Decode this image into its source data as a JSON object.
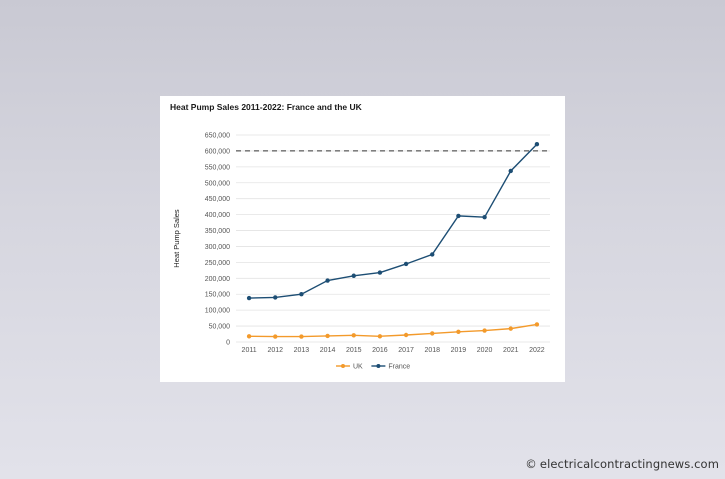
{
  "page": {
    "watermark": "electricalcontractingnews.com",
    "watermark_symbol": "©"
  },
  "chart_data": {
    "type": "line",
    "title": "Heat Pump Sales 2011-2022: France and the UK",
    "xlabel": "",
    "ylabel": "Heat Pump Sales",
    "ylim": [
      0,
      650000
    ],
    "yticks": [
      0,
      50000,
      100000,
      150000,
      200000,
      250000,
      300000,
      350000,
      400000,
      450000,
      500000,
      550000,
      600000,
      650000
    ],
    "ytick_labels": [
      "0",
      "50,000",
      "100,000",
      "150,000",
      "200,000",
      "250,000",
      "300,000",
      "350,000",
      "400,000",
      "450,000",
      "500,000",
      "550,000",
      "600,000",
      "650,000"
    ],
    "categories": [
      "2011",
      "2012",
      "2013",
      "2014",
      "2015",
      "2016",
      "2017",
      "2018",
      "2019",
      "2020",
      "2021",
      "2022"
    ],
    "series": [
      {
        "name": "UK",
        "color": "#f39a2b",
        "values": [
          18000,
          17000,
          17000,
          19000,
          21000,
          18000,
          22000,
          27000,
          32000,
          36000,
          42000,
          55000
        ]
      },
      {
        "name": "France",
        "color": "#1d4e74",
        "values": [
          138000,
          140000,
          150000,
          193000,
          208000,
          218000,
          245000,
          275000,
          396000,
          392000,
          537000,
          621000
        ]
      }
    ],
    "reference_line": {
      "value": 600000,
      "style": "dashed",
      "color": "#333333"
    },
    "grid": true,
    "legend_position": "bottom"
  }
}
